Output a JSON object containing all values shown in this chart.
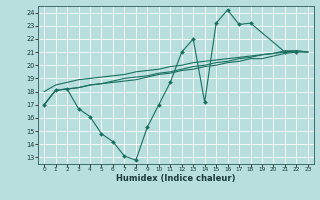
{
  "xlabel": "Humidex (Indice chaleur)",
  "bg_color": "#b8dede",
  "grid_color": "#ffffff",
  "line_color": "#1a7060",
  "xlim": [
    -0.5,
    23.5
  ],
  "ylim": [
    12.5,
    24.5
  ],
  "xticks": [
    0,
    1,
    2,
    3,
    4,
    5,
    6,
    7,
    8,
    9,
    10,
    11,
    12,
    13,
    14,
    15,
    16,
    17,
    18,
    19,
    20,
    21,
    22,
    23
  ],
  "yticks": [
    13,
    14,
    15,
    16,
    17,
    18,
    19,
    20,
    21,
    22,
    23,
    24
  ],
  "line1_x": [
    0,
    1,
    2,
    3,
    4,
    5,
    6,
    7,
    8,
    9,
    10,
    11,
    12,
    13,
    14,
    15,
    16,
    17,
    18,
    21,
    22
  ],
  "line1_y": [
    17.0,
    18.1,
    18.2,
    16.7,
    16.1,
    14.8,
    14.2,
    13.1,
    12.8,
    15.3,
    17.0,
    18.7,
    21.0,
    22.0,
    17.2,
    23.2,
    24.2,
    23.1,
    23.2,
    21.0,
    21.0
  ],
  "line2_x": [
    0,
    1,
    2,
    3,
    4,
    5,
    6,
    7,
    8,
    9,
    10,
    11,
    12,
    13,
    14,
    15,
    16,
    17,
    18,
    19,
    20,
    21,
    22,
    23
  ],
  "line2_y": [
    17.0,
    18.1,
    18.2,
    18.3,
    18.5,
    18.6,
    18.7,
    18.8,
    18.9,
    19.1,
    19.3,
    19.4,
    19.6,
    19.7,
    19.9,
    20.0,
    20.2,
    20.3,
    20.5,
    20.5,
    20.7,
    20.9,
    21.0,
    21.0
  ],
  "line3_x": [
    0,
    1,
    2,
    3,
    4,
    5,
    6,
    7,
    8,
    9,
    10,
    11,
    12,
    13,
    14,
    15,
    16,
    17,
    18,
    19,
    20,
    21,
    22,
    23
  ],
  "line3_y": [
    17.0,
    18.1,
    18.2,
    18.3,
    18.5,
    18.6,
    18.8,
    19.0,
    19.1,
    19.2,
    19.4,
    19.5,
    19.7,
    19.9,
    20.0,
    20.2,
    20.3,
    20.5,
    20.6,
    20.8,
    20.9,
    21.1,
    21.1,
    21.0
  ],
  "line4_x": [
    0,
    1,
    2,
    3,
    4,
    5,
    6,
    7,
    8,
    9,
    10,
    11,
    12,
    13,
    14,
    15,
    16,
    17,
    18,
    19,
    20,
    21,
    22,
    23
  ],
  "line4_y": [
    18.0,
    18.5,
    18.7,
    18.9,
    19.0,
    19.1,
    19.2,
    19.3,
    19.5,
    19.6,
    19.7,
    19.9,
    20.0,
    20.2,
    20.3,
    20.4,
    20.5,
    20.6,
    20.7,
    20.8,
    20.9,
    21.0,
    21.1,
    21.0
  ]
}
